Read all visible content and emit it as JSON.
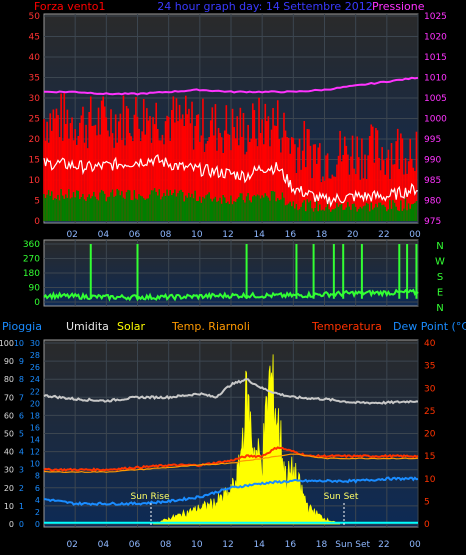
{
  "header": {
    "left_label": "Forza vento1",
    "title": "24 hour graph day: 14 Settembre 2012",
    "right_label": "Pressione"
  },
  "x_tick_labels": [
    "02",
    "04",
    "06",
    "08",
    "10",
    "12",
    "14",
    "16",
    "18",
    "20",
    "22",
    "00"
  ],
  "wind_panel": {
    "left_ticks": [
      "50",
      "45",
      "40",
      "35",
      "30",
      "25",
      "20",
      "15",
      "10",
      "5",
      "0"
    ],
    "right_ticks": [
      "1025",
      "1020",
      "1015",
      "1010",
      "1005",
      "1000",
      "995",
      "990",
      "985",
      "980",
      "975"
    ]
  },
  "dir_panel": {
    "left_ticks": [
      "360",
      "270",
      "180",
      "90",
      "0"
    ],
    "right_ticks": [
      "N",
      "W",
      "S",
      "E",
      "N"
    ]
  },
  "bottom_panel": {
    "legend": {
      "pioggia": "Pioggia",
      "umidita": "Umidita",
      "solar": "Solar",
      "temp_riarnoli": "Temp. Riarnoli",
      "temperatura": "Temperatura",
      "dew_point": "Dew Point (°C)"
    },
    "rain_ticks": [
      "10",
      "9",
      "8",
      "7",
      "6",
      "5",
      "4",
      "3",
      "2",
      "1",
      "0"
    ],
    "humidity_ticks": [
      "100",
      "90",
      "80",
      "70",
      "60",
      "50",
      "40",
      "30",
      "20",
      "10",
      "0"
    ],
    "solar_ticks": [
      "30",
      "28",
      "26",
      "24",
      "22",
      "20",
      "18",
      "16",
      "14",
      "12",
      "10",
      "8",
      "6",
      "4",
      "2",
      "0"
    ],
    "temp_ticks": [
      "40",
      "35",
      "30",
      "25",
      "20",
      "15",
      "10",
      "5",
      "0"
    ],
    "sun_rise": "Sun Rise",
    "sun_set": "Sun Set",
    "bottom_labels": [
      "02",
      "04",
      "06",
      "08",
      "10",
      "12",
      "14",
      "16",
      "18",
      "Sun Set",
      "22",
      "00"
    ]
  },
  "colors": {
    "wind_gust": "#ff0000",
    "wind_avg": "#008000",
    "wind_line": "#ffffff",
    "pressure": "#ff33ff",
    "direction": "#33ff33",
    "humidity": "#c8c8c8",
    "solar": "#ffff00",
    "temperature": "#ff3300",
    "temp_riarnoli": "#ff9900",
    "dew_point": "#1a8cff",
    "rain": "#00ffff"
  },
  "chart_data": [
    {
      "type": "line",
      "title": "24 hour graph day: 14 Settembre 2012",
      "x_unit": "hour",
      "series": [
        {
          "name": "Forza vento1",
          "x": [
            1,
            3,
            5,
            7,
            9,
            11,
            13,
            14,
            15,
            16,
            18,
            20,
            22,
            24
          ],
          "y": [
            14,
            13,
            14,
            15,
            13,
            12,
            11,
            13,
            13,
            8,
            5,
            6,
            6,
            8
          ]
        },
        {
          "name": "Pressione",
          "axis": "right",
          "x": [
            0,
            2,
            4,
            6,
            8,
            10,
            12,
            14,
            16,
            18,
            20,
            22,
            24
          ],
          "y": [
            1006.5,
            1006.5,
            1006,
            1006,
            1006.5,
            1007,
            1006.5,
            1006.5,
            1006.5,
            1007,
            1008,
            1009,
            1010
          ]
        }
      ],
      "ylim_left": [
        0,
        50
      ],
      "ylim_right": [
        975,
        1025
      ]
    },
    {
      "type": "line",
      "x_unit": "hour",
      "series": [
        {
          "name": "direction",
          "x": [
            0,
            4,
            8,
            12,
            16,
            20,
            24
          ],
          "y": [
            40,
            30,
            30,
            40,
            40,
            55,
            60
          ]
        }
      ],
      "ylim": [
        0,
        360
      ]
    },
    {
      "type": "line",
      "x_unit": "hour",
      "series": [
        {
          "name": "Umidita",
          "x": [
            0,
            2,
            4,
            6,
            8,
            10,
            11,
            12,
            13,
            14,
            15,
            16,
            18,
            20,
            22,
            24
          ],
          "y": [
            71,
            69,
            68,
            70,
            70,
            72,
            70,
            77,
            80,
            75,
            72,
            70,
            69,
            67,
            67,
            68
          ]
        },
        {
          "name": "Temperatura",
          "axis": "temp",
          "x": [
            0,
            4,
            8,
            10,
            12,
            13,
            14,
            15,
            16,
            17,
            18,
            20,
            22,
            24
          ],
          "y": [
            12,
            12,
            13,
            13,
            14,
            15,
            15,
            17,
            16,
            15,
            15,
            15,
            15,
            15
          ]
        },
        {
          "name": "Temp. Riarnoli",
          "axis": "temp",
          "x": [
            0,
            4,
            8,
            10,
            12,
            14,
            16,
            18,
            20,
            22,
            24
          ],
          "y": [
            11.5,
            11.5,
            12.5,
            13,
            13.5,
            14.5,
            15.5,
            14.5,
            14.5,
            14.5,
            14.5
          ]
        },
        {
          "name": "Dew Point (°C)",
          "axis": "temp",
          "x": [
            0,
            2,
            4,
            6,
            8,
            10,
            12,
            14,
            16,
            18,
            20,
            22,
            24
          ],
          "y": [
            5.5,
            4.5,
            4.5,
            4.5,
            5,
            6,
            8,
            9,
            9.5,
            9.5,
            9.5,
            10,
            10
          ]
        },
        {
          "name": "Solar",
          "axis": "solar",
          "x": [
            7,
            8,
            9,
            10,
            11,
            12,
            12.5,
            13,
            13.5,
            14,
            14.5,
            15,
            15.5,
            16,
            17,
            18,
            19
          ],
          "y": [
            0,
            1,
            2,
            3,
            4,
            6,
            10,
            24,
            14,
            12,
            28,
            20,
            9,
            10,
            3,
            1,
            0
          ]
        },
        {
          "name": "Pioggia",
          "axis": "rain",
          "x": [
            0,
            24
          ],
          "y": [
            0,
            0
          ]
        }
      ],
      "ylim_humidity": [
        0,
        100
      ],
      "ylim_temp": [
        0,
        40
      ],
      "ylim_solar": [
        0,
        30
      ],
      "ylim_rain": [
        0,
        10
      ],
      "annotations": [
        "Sun Rise",
        "Sun Set"
      ]
    }
  ]
}
